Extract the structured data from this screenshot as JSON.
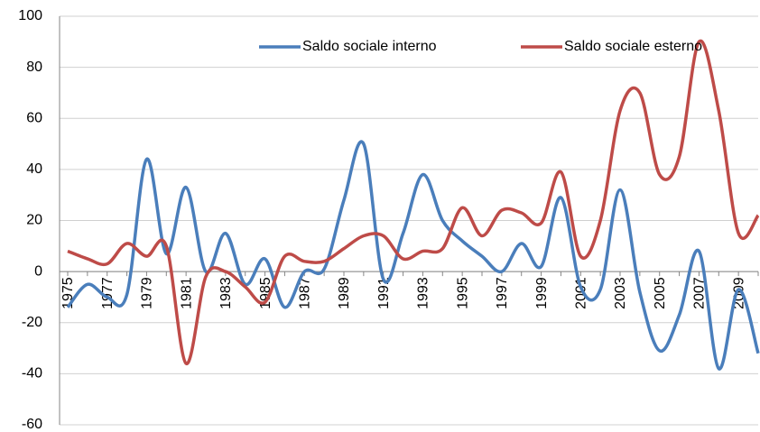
{
  "chart_data": {
    "type": "line",
    "categories": [
      "1975",
      null,
      "1977",
      null,
      "1979",
      null,
      "1981",
      null,
      "1983",
      null,
      "1985",
      null,
      "1987",
      null,
      "1989",
      null,
      "1991",
      null,
      "1993",
      null,
      "1995",
      null,
      "1997",
      null,
      "1999",
      null,
      "2001",
      null,
      "2003",
      null,
      "2005",
      null,
      "2007",
      null,
      "2009",
      null
    ],
    "series": [
      {
        "name": "Saldo sociale interno",
        "color": "#4a7ebb",
        "values": [
          -14,
          -5,
          -10,
          -9,
          44,
          7,
          33,
          0,
          15,
          -5,
          5,
          -14,
          0,
          1,
          28,
          50,
          -3,
          15,
          38,
          20,
          12,
          6,
          0,
          11,
          2,
          29,
          -6,
          -7,
          32,
          -8,
          -31,
          -17,
          8,
          -38,
          -7,
          -32
        ]
      },
      {
        "name": "Saldo sociale esterno",
        "color": "#be4b48",
        "values": [
          8,
          5,
          3,
          11,
          6,
          10,
          -36,
          -2,
          0,
          -6,
          -12,
          6,
          4,
          4,
          9,
          14,
          14,
          5,
          8,
          9,
          25,
          14,
          24,
          23,
          19,
          39,
          6,
          20,
          63,
          70,
          38,
          45,
          90,
          63,
          15,
          22
        ]
      }
    ],
    "ylim": [
      -60,
      100
    ],
    "yticks": [
      -60,
      -40,
      -20,
      0,
      20,
      40,
      60,
      80,
      100
    ],
    "grid": true,
    "legend": "top",
    "smooth": true
  }
}
